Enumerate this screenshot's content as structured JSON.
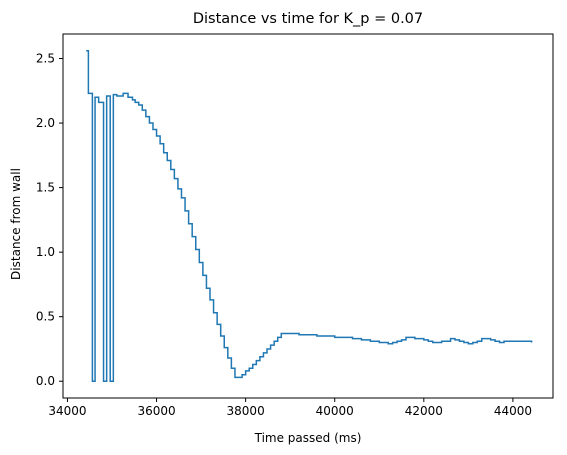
{
  "chart_data": {
    "type": "line",
    "title": "Distance vs time for K_p = 0.07",
    "xlabel": "Time passed (ms)",
    "ylabel": "Distance from wall",
    "xlim": [
      33900,
      44900
    ],
    "ylim": [
      -0.13,
      2.69
    ],
    "grid": false,
    "x_ticks": [
      34000,
      36000,
      38000,
      40000,
      42000,
      44000
    ],
    "x_tick_labels": [
      "34000",
      "36000",
      "38000",
      "40000",
      "42000",
      "44000"
    ],
    "y_ticks": [
      0.0,
      0.5,
      1.0,
      1.5,
      2.0,
      2.5
    ],
    "y_tick_labels": [
      "0.0",
      "0.5",
      "1.0",
      "1.5",
      "2.0",
      "2.5"
    ],
    "series": [
      {
        "color": "#1f77b4",
        "drawstyle": "steps-post",
        "x": [
          34420,
          34470,
          34560,
          34620,
          34700,
          34810,
          34880,
          34960,
          35030,
          35110,
          35250,
          35360,
          35460,
          35520,
          35600,
          35680,
          35760,
          35840,
          35920,
          36000,
          36080,
          36160,
          36240,
          36320,
          36400,
          36480,
          36560,
          36640,
          36720,
          36800,
          36880,
          36960,
          37040,
          37120,
          37200,
          37280,
          37360,
          37440,
          37520,
          37600,
          37680,
          37760,
          37840,
          37920,
          38000,
          38080,
          38160,
          38240,
          38320,
          38400,
          38480,
          38560,
          38640,
          38720,
          38800,
          38880,
          38960,
          39200,
          39400,
          39600,
          39800,
          40000,
          40200,
          40400,
          40600,
          40800,
          41000,
          41200,
          41300,
          41400,
          41500,
          41600,
          41800,
          42000,
          42100,
          42200,
          42300,
          42400,
          42600,
          42700,
          42800,
          42900,
          43000,
          43100,
          43200,
          43300,
          43500,
          43600,
          43700,
          43800,
          44000,
          44200,
          44420
        ],
        "y": [
          2.56,
          2.23,
          0.0,
          2.2,
          2.16,
          0.0,
          2.21,
          0.0,
          2.22,
          2.21,
          2.23,
          2.2,
          2.18,
          2.16,
          2.14,
          2.1,
          2.05,
          2.0,
          1.95,
          1.9,
          1.84,
          1.77,
          1.71,
          1.64,
          1.57,
          1.49,
          1.42,
          1.32,
          1.22,
          1.12,
          1.02,
          0.92,
          0.82,
          0.72,
          0.63,
          0.53,
          0.44,
          0.35,
          0.26,
          0.18,
          0.1,
          0.03,
          0.03,
          0.05,
          0.08,
          0.1,
          0.13,
          0.16,
          0.19,
          0.22,
          0.25,
          0.28,
          0.31,
          0.34,
          0.37,
          0.37,
          0.37,
          0.36,
          0.36,
          0.35,
          0.35,
          0.34,
          0.34,
          0.33,
          0.32,
          0.31,
          0.3,
          0.29,
          0.3,
          0.31,
          0.32,
          0.34,
          0.33,
          0.32,
          0.31,
          0.3,
          0.3,
          0.31,
          0.33,
          0.32,
          0.31,
          0.3,
          0.29,
          0.3,
          0.31,
          0.33,
          0.32,
          0.31,
          0.3,
          0.31,
          0.31,
          0.31,
          0.3
        ]
      }
    ]
  }
}
